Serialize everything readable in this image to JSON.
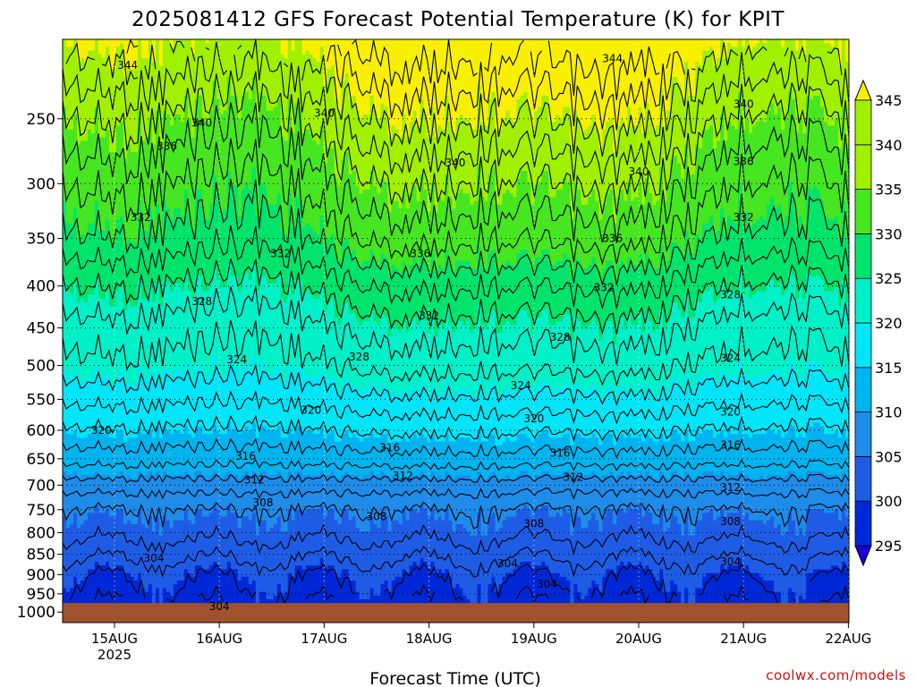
{
  "chart_data": {
    "type": "heatmap",
    "title": "2025081412 GFS Forecast Potential Temperature (K) for KPIT",
    "xlabel": "Forecast Time (UTC)",
    "ylabel": "",
    "credit": "coolwx.com/models",
    "x_ticks": [
      "15AUG",
      "16AUG",
      "17AUG",
      "18AUG",
      "19AUG",
      "20AUG",
      "21AUG",
      "22AUG"
    ],
    "x_year_label": "2025",
    "y_ticks": [
      250,
      300,
      350,
      400,
      450,
      500,
      550,
      600,
      650,
      700,
      750,
      800,
      850,
      900,
      950,
      1000
    ],
    "y_axis": "pressure (hPa), log-scaled, inverted",
    "xlim_days": [
      "14AUG 12Z",
      "22AUG 00Z"
    ],
    "ylim_hpa": [
      200,
      1030
    ],
    "colorbar": {
      "ticks": [
        295,
        300,
        305,
        310,
        315,
        320,
        325,
        330,
        335,
        340,
        345
      ],
      "colors": [
        "#1a00d8",
        "#0028d8",
        "#1e5ce6",
        "#1e8ce8",
        "#00b4f0",
        "#00e6f8",
        "#00f0c8",
        "#00e46c",
        "#46e620",
        "#a0f000",
        "#f8f000"
      ],
      "extend": "both"
    },
    "ground_color": "#a0522d",
    "theta_profile": {
      "pressure_hpa": [
        1000,
        950,
        900,
        850,
        800,
        750,
        700,
        650,
        600,
        550,
        500,
        450,
        400,
        350,
        300,
        250,
        200
      ],
      "theta_k": [
        301,
        302,
        303,
        305,
        307,
        308,
        311,
        315,
        318,
        321,
        324,
        326,
        329,
        333,
        336,
        340,
        345
      ]
    },
    "contour_interval_k": 2,
    "contour_labels": [
      {
        "value": "344",
        "time": "15AUG 03Z",
        "p": 215
      },
      {
        "value": "344",
        "time": "19AUG 18Z",
        "p": 211
      },
      {
        "value": "340",
        "time": "15AUG 20Z",
        "p": 253
      },
      {
        "value": "340",
        "time": "17AUG 00Z",
        "p": 246
      },
      {
        "value": "340",
        "time": "18AUG 06Z",
        "p": 283
      },
      {
        "value": "340",
        "time": "20AUG 00Z",
        "p": 290
      },
      {
        "value": "340",
        "time": "21AUG 00Z",
        "p": 240
      },
      {
        "value": "336",
        "time": "15AUG 12Z",
        "p": 270
      },
      {
        "value": "336",
        "time": "21AUG 00Z",
        "p": 282
      },
      {
        "value": "336",
        "time": "17AUG 22Z",
        "p": 365
      },
      {
        "value": "336",
        "time": "19AUG 18Z",
        "p": 350
      },
      {
        "value": "332",
        "time": "15AUG 06Z",
        "p": 330
      },
      {
        "value": "332",
        "time": "16AUG 14Z",
        "p": 365
      },
      {
        "value": "332",
        "time": "19AUG 16Z",
        "p": 402
      },
      {
        "value": "332",
        "time": "21AUG 00Z",
        "p": 330
      },
      {
        "value": "332",
        "time": "18AUG 00Z",
        "p": 435
      },
      {
        "value": "328",
        "time": "15AUG 20Z",
        "p": 418
      },
      {
        "value": "328",
        "time": "17AUG 08Z",
        "p": 488
      },
      {
        "value": "328",
        "time": "19AUG 06Z",
        "p": 462
      },
      {
        "value": "328",
        "time": "20AUG 21Z",
        "p": 410
      },
      {
        "value": "324",
        "time": "16AUG 04Z",
        "p": 492
      },
      {
        "value": "324",
        "time": "18AUG 21Z",
        "p": 529
      },
      {
        "value": "324",
        "time": "20AUG 21Z",
        "p": 490
      },
      {
        "value": "320",
        "time": "14AUG 21Z",
        "p": 600
      },
      {
        "value": "320",
        "time": "16AUG 21Z",
        "p": 567
      },
      {
        "value": "320",
        "time": "19AUG 00Z",
        "p": 581
      },
      {
        "value": "320",
        "time": "20AUG 21Z",
        "p": 570
      },
      {
        "value": "316",
        "time": "16AUG 06Z",
        "p": 645
      },
      {
        "value": "316",
        "time": "17AUG 15Z",
        "p": 630
      },
      {
        "value": "316",
        "time": "19AUG 06Z",
        "p": 640
      },
      {
        "value": "316",
        "time": "20AUG 21Z",
        "p": 625
      },
      {
        "value": "312",
        "time": "16AUG 08Z",
        "p": 690
      },
      {
        "value": "312",
        "time": "17AUG 18Z",
        "p": 682
      },
      {
        "value": "312",
        "time": "19AUG 09Z",
        "p": 685
      },
      {
        "value": "312",
        "time": "20AUG 21Z",
        "p": 705
      },
      {
        "value": "308",
        "time": "16AUG 10Z",
        "p": 735
      },
      {
        "value": "308",
        "time": "17AUG 12Z",
        "p": 765
      },
      {
        "value": "308",
        "time": "19AUG 00Z",
        "p": 780
      },
      {
        "value": "308",
        "time": "20AUG 21Z",
        "p": 775
      },
      {
        "value": "304",
        "time": "15AUG 09Z",
        "p": 860
      },
      {
        "value": "304",
        "time": "18AUG 18Z",
        "p": 872
      },
      {
        "value": "304",
        "time": "19AUG 03Z",
        "p": 925
      },
      {
        "value": "304",
        "time": "20AUG 21Z",
        "p": 868
      },
      {
        "value": "304",
        "time": "16AUG 00Z",
        "p": 985
      }
    ]
  }
}
